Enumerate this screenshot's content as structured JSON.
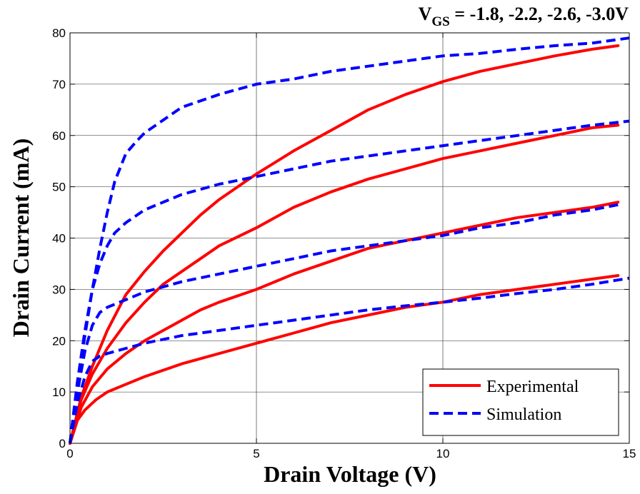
{
  "chart_data": {
    "type": "line",
    "title": "V_GS = -1.8, -2.2, -2.6, -3.0V",
    "title_parts": {
      "prefix": "V",
      "subscript": "GS",
      "suffix": " = -1.8, -2.2, -2.6, -3.0V"
    },
    "xlabel": "Drain Voltage (V)",
    "ylabel": "Drain Current (mA)",
    "xlim": [
      0,
      15
    ],
    "ylim": [
      0,
      80
    ],
    "xticks": [
      0,
      5,
      10,
      15
    ],
    "yticks": [
      0,
      10,
      20,
      30,
      40,
      50,
      60,
      70,
      80
    ],
    "grid": true,
    "legend_position": "bottom-right",
    "colors": {
      "experimental": "#ff0000",
      "simulation": "#0000ff"
    },
    "legend": [
      {
        "label": "Experimental",
        "style": "solid",
        "color": "#ff0000"
      },
      {
        "label": "Simulation",
        "style": "dashed",
        "color": "#0000ff"
      }
    ],
    "series": [
      {
        "group": "Experimental",
        "style": "solid",
        "color": "#ff0000",
        "x": [
          0,
          0.2,
          0.4,
          0.7,
          1.0,
          1.5,
          2.0,
          3.0,
          4.0,
          5.0,
          6.0,
          7.0,
          8.0,
          9.0,
          10.0,
          11.0,
          12.0,
          13.0,
          14.0,
          14.7
        ],
        "y": [
          0,
          4.5,
          6.5,
          8.5,
          10.0,
          11.5,
          13.0,
          15.5,
          17.5,
          19.5,
          21.5,
          23.5,
          25.0,
          26.5,
          27.5,
          29.0,
          30.0,
          31.0,
          32.0,
          32.7
        ]
      },
      {
        "group": "Experimental",
        "style": "solid",
        "color": "#ff0000",
        "x": [
          0,
          0.3,
          0.6,
          1.0,
          1.5,
          2.0,
          2.5,
          3.0,
          3.5,
          4.0,
          5.0,
          6.0,
          7.0,
          8.0,
          9.0,
          10.0,
          11.0,
          12.0,
          13.0,
          14.0,
          14.7
        ],
        "y": [
          0,
          7.0,
          11.0,
          14.5,
          17.5,
          20.0,
          22.0,
          24.0,
          26.0,
          27.5,
          30.0,
          33.0,
          35.5,
          38.0,
          39.5,
          41.0,
          42.5,
          44.0,
          45.0,
          46.0,
          47.0
        ]
      },
      {
        "group": "Experimental",
        "style": "solid",
        "color": "#ff0000",
        "x": [
          0,
          0.3,
          0.6,
          1.0,
          1.5,
          2.0,
          2.5,
          3.0,
          3.5,
          4.0,
          5.0,
          6.0,
          7.0,
          8.0,
          9.0,
          10.0,
          11.0,
          12.0,
          13.0,
          14.0,
          14.7
        ],
        "y": [
          0,
          8.5,
          13.5,
          18.5,
          23.5,
          27.5,
          31.0,
          33.5,
          36.0,
          38.5,
          42.0,
          46.0,
          49.0,
          51.5,
          53.5,
          55.5,
          57.0,
          58.5,
          60.0,
          61.5,
          62.0
        ]
      },
      {
        "group": "Experimental",
        "style": "solid",
        "color": "#ff0000",
        "x": [
          0,
          0.3,
          0.6,
          1.0,
          1.5,
          2.0,
          2.5,
          3.0,
          3.5,
          4.0,
          4.5,
          5.0,
          6.0,
          7.0,
          8.0,
          9.0,
          10.0,
          11.0,
          12.0,
          13.0,
          14.0,
          14.7
        ],
        "y": [
          0,
          9.0,
          15.0,
          22.0,
          29.0,
          33.5,
          37.5,
          41.0,
          44.5,
          47.5,
          50.0,
          52.5,
          57.0,
          61.0,
          65.0,
          68.0,
          70.5,
          72.5,
          74.0,
          75.5,
          76.8,
          77.5
        ]
      },
      {
        "group": "Simulation",
        "style": "dashed",
        "color": "#0000ff",
        "x": [
          0,
          0.2,
          0.4,
          0.6,
          0.8,
          1.0,
          1.5,
          2.0,
          3.0,
          4.0,
          5.0,
          6.0,
          7.0,
          8.0,
          9.0,
          10.0,
          11.0,
          12.0,
          13.0,
          14.0,
          15.0
        ],
        "y": [
          0,
          8.0,
          13.0,
          16.0,
          17.0,
          17.5,
          18.5,
          19.5,
          21.0,
          22.0,
          23.0,
          24.0,
          25.0,
          26.0,
          26.8,
          27.5,
          28.3,
          29.2,
          30.0,
          31.0,
          32.2
        ]
      },
      {
        "group": "Simulation",
        "style": "dashed",
        "color": "#0000ff",
        "x": [
          0,
          0.2,
          0.4,
          0.6,
          0.8,
          1.0,
          1.5,
          2.0,
          3.0,
          4.0,
          5.0,
          6.0,
          7.0,
          8.0,
          9.0,
          10.0,
          11.0,
          12.0,
          13.0,
          14.0,
          14.7
        ],
        "y": [
          0,
          10.0,
          18.0,
          23.0,
          25.5,
          26.5,
          28.0,
          29.5,
          31.5,
          33.0,
          34.5,
          36.0,
          37.5,
          38.5,
          39.5,
          40.5,
          42.0,
          43.0,
          44.5,
          45.5,
          46.5
        ]
      },
      {
        "group": "Simulation",
        "style": "dashed",
        "color": "#0000ff",
        "x": [
          0,
          0.2,
          0.4,
          0.6,
          0.8,
          1.0,
          1.2,
          1.5,
          2.0,
          3.0,
          4.0,
          5.0,
          6.0,
          7.0,
          8.0,
          9.0,
          10.0,
          11.0,
          12.0,
          13.0,
          14.0,
          15.0
        ],
        "y": [
          0,
          12.0,
          22.0,
          30.0,
          35.0,
          38.5,
          41.0,
          43.0,
          45.5,
          48.5,
          50.5,
          52.0,
          53.5,
          55.0,
          56.0,
          57.0,
          58.0,
          59.0,
          60.0,
          61.0,
          62.0,
          62.8
        ]
      },
      {
        "group": "Simulation",
        "style": "dashed",
        "color": "#0000ff",
        "x": [
          0,
          0.2,
          0.4,
          0.6,
          0.8,
          1.0,
          1.2,
          1.5,
          1.8,
          2.0,
          2.5,
          3.0,
          4.0,
          5.0,
          6.0,
          7.0,
          8.0,
          9.0,
          10.0,
          11.0,
          12.0,
          13.0,
          14.0,
          15.0
        ],
        "y": [
          0,
          12.0,
          21.0,
          30.0,
          38.0,
          45.0,
          51.0,
          56.5,
          59.0,
          60.5,
          63.0,
          65.5,
          68.0,
          70.0,
          71.0,
          72.5,
          73.5,
          74.5,
          75.5,
          76.0,
          76.8,
          77.5,
          78.0,
          79.0
        ]
      }
    ]
  }
}
